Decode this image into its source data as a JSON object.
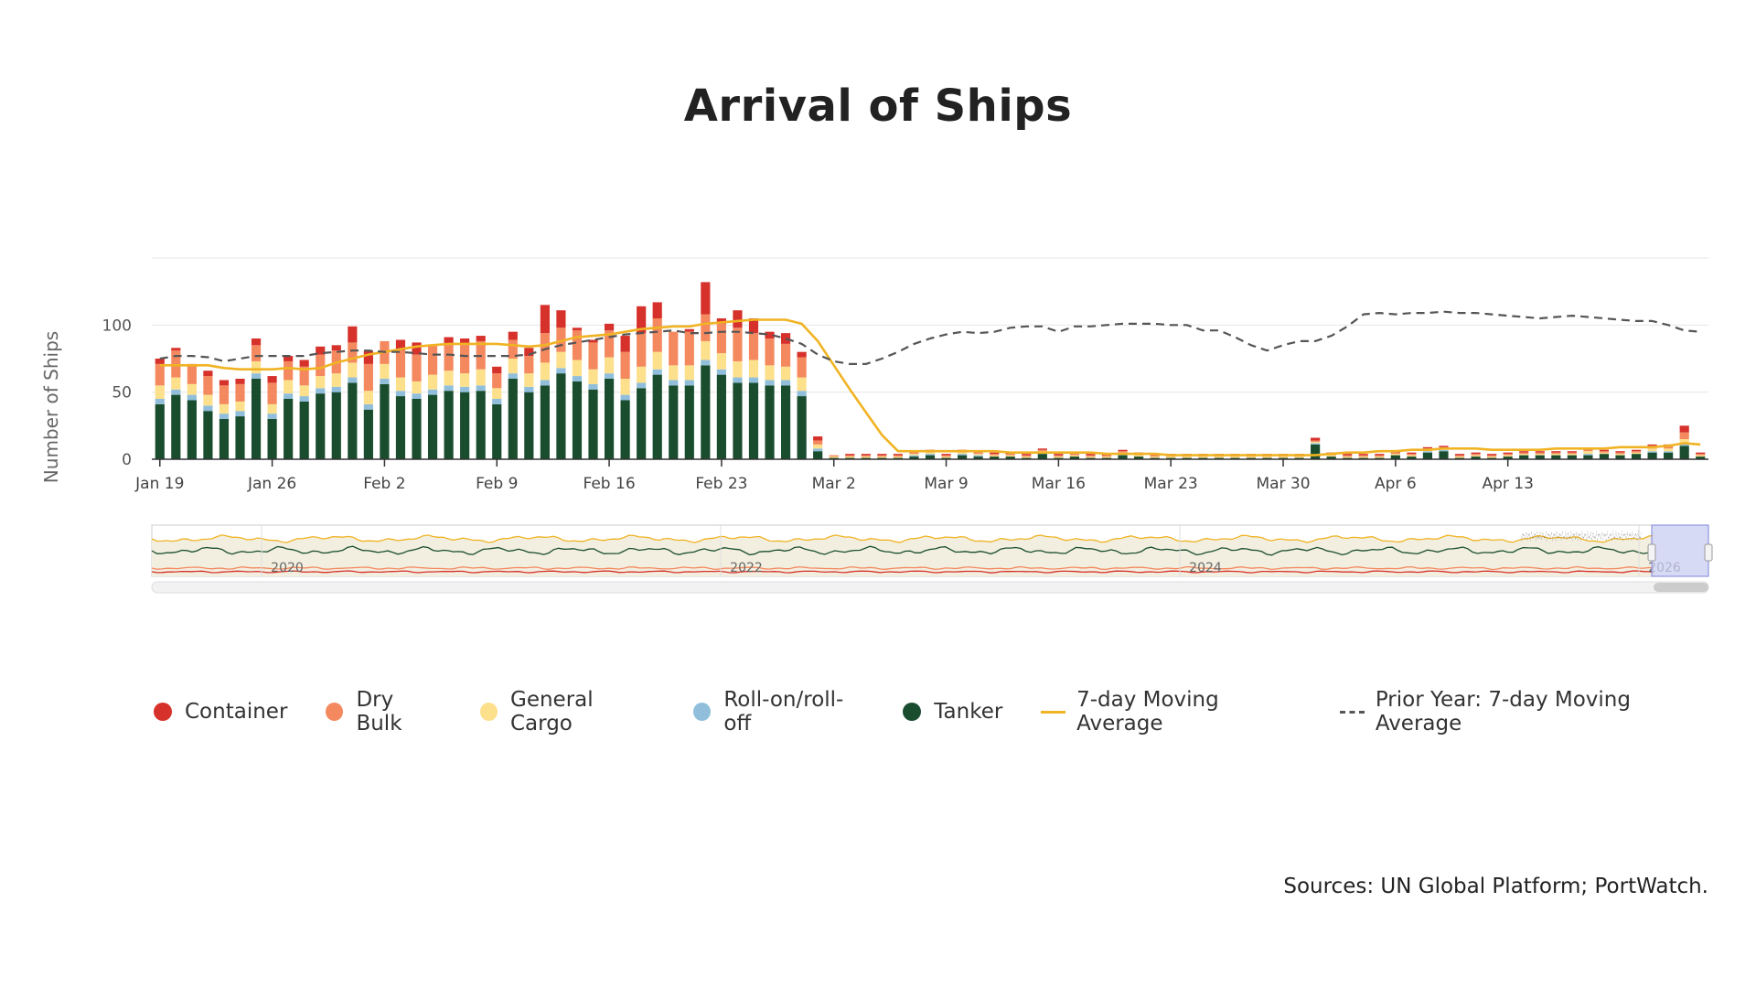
{
  "title": "Arrival of Ships",
  "source": "Sources: UN Global Platform; PortWatch.",
  "colors": {
    "container": "#d6312b",
    "dry_bulk": "#f4895f",
    "general_cargo": "#fde08c",
    "roro": "#91bfdb",
    "tanker": "#1a4d2e",
    "moving_average": "#f0b323",
    "prior_year": "#555555",
    "grid": "#e6e6e6",
    "navigator_fill": "#f2efe0",
    "navigator_window": "#c9cdf2"
  },
  "legend": [
    {
      "label": "Container",
      "key": "container",
      "symbol": "dot"
    },
    {
      "label": "Dry Bulk",
      "key": "dry_bulk",
      "symbol": "dot"
    },
    {
      "label": "General Cargo",
      "key": "general_cargo",
      "symbol": "dot"
    },
    {
      "label": "Roll-on/roll-off",
      "key": "roro",
      "symbol": "dot"
    },
    {
      "label": "Tanker",
      "key": "tanker",
      "symbol": "dot"
    },
    {
      "label": "7-day Moving Average",
      "key": "moving_average",
      "symbol": "line"
    },
    {
      "label": "Prior Year: 7-day Moving Average",
      "key": "prior_year",
      "symbol": "dash"
    }
  ],
  "navigator": {
    "year_labels": [
      "2020",
      "2022",
      "2024",
      "2026"
    ]
  },
  "chart_data": {
    "type": "bar",
    "stacked": true,
    "ylabel": "Number of Ships",
    "xlabel": "",
    "ylim": [
      0,
      150
    ],
    "y_ticks": [
      0,
      50,
      100
    ],
    "grid": true,
    "legend_position": "bottom",
    "x_ticks": [
      "Jan 19",
      "Jan 26",
      "Feb 2",
      "Feb 9",
      "Feb 16",
      "Feb 23",
      "Mar 2",
      "Mar 9",
      "Mar 16",
      "Mar 23",
      "Mar 30",
      "Apr 6",
      "Apr 13"
    ],
    "x_range": [
      "Jan 19",
      "Apr 19"
    ],
    "series": [
      {
        "name": "Tanker",
        "key": "tanker",
        "values": [
          41,
          48,
          44,
          36,
          30,
          32,
          60,
          30,
          45,
          43,
          49,
          50,
          57,
          37,
          56,
          47,
          45,
          48,
          51,
          50,
          51,
          41,
          60,
          50,
          55,
          64,
          58,
          52,
          60,
          44,
          53,
          63,
          55,
          55,
          70,
          63,
          57,
          57,
          55,
          55,
          47,
          6,
          1,
          1,
          1,
          1,
          1,
          2,
          3,
          1,
          3,
          2,
          2,
          2,
          1,
          4,
          1,
          2,
          1,
          1,
          3,
          2,
          1,
          1,
          1,
          1,
          1,
          1,
          1,
          1,
          1,
          1,
          11,
          2,
          1,
          1,
          1,
          3,
          2,
          5,
          6,
          1,
          2,
          1,
          2,
          3,
          3,
          3,
          3,
          3,
          4,
          3,
          4,
          5,
          5,
          10,
          2
        ]
      },
      {
        "name": "Roll-on/roll-off",
        "key": "roro",
        "values": [
          4,
          4,
          4,
          4,
          4,
          4,
          4,
          4,
          4,
          4,
          4,
          4,
          4,
          4,
          4,
          4,
          4,
          4,
          4,
          4,
          4,
          4,
          4,
          4,
          4,
          4,
          4,
          4,
          4,
          4,
          4,
          4,
          4,
          4,
          4,
          4,
          4,
          4,
          4,
          4,
          4,
          2,
          0,
          0,
          0,
          0,
          0,
          1,
          1,
          0,
          1,
          1,
          0,
          0,
          0,
          1,
          0,
          0,
          0,
          0,
          1,
          0,
          0,
          0,
          0,
          0,
          0,
          0,
          0,
          0,
          0,
          0,
          1,
          0,
          0,
          0,
          0,
          0,
          0,
          1,
          1,
          0,
          0,
          0,
          0,
          0,
          0,
          0,
          0,
          1,
          0,
          0,
          0,
          1,
          1,
          2,
          0
        ]
      },
      {
        "name": "General Cargo",
        "key": "general_cargo",
        "values": [
          10,
          9,
          8,
          8,
          7,
          7,
          9,
          7,
          10,
          8,
          9,
          10,
          11,
          10,
          11,
          10,
          9,
          11,
          11,
          10,
          12,
          8,
          11,
          10,
          13,
          12,
          12,
          11,
          12,
          12,
          12,
          13,
          11,
          11,
          14,
          12,
          12,
          13,
          11,
          10,
          10,
          3,
          1,
          1,
          1,
          1,
          1,
          1,
          1,
          1,
          1,
          1,
          1,
          1,
          1,
          1,
          1,
          1,
          1,
          1,
          1,
          1,
          1,
          1,
          1,
          1,
          1,
          1,
          1,
          1,
          1,
          1,
          1,
          1,
          1,
          1,
          1,
          1,
          1,
          1,
          1,
          1,
          1,
          1,
          1,
          1,
          1,
          1,
          1,
          2,
          1,
          1,
          1,
          2,
          2,
          3,
          1
        ]
      },
      {
        "name": "Dry Bulk",
        "key": "dry_bulk",
        "values": [
          16,
          20,
          14,
          14,
          14,
          13,
          12,
          16,
          14,
          14,
          16,
          17,
          15,
          20,
          17,
          20,
          20,
          22,
          20,
          22,
          21,
          11,
          14,
          13,
          22,
          18,
          22,
          20,
          20,
          20,
          25,
          25,
          25,
          25,
          20,
          22,
          25,
          20,
          20,
          17,
          15,
          3,
          1,
          1,
          1,
          1,
          1,
          1,
          1,
          1,
          1,
          1,
          1,
          1,
          1,
          1,
          1,
          1,
          1,
          1,
          1,
          1,
          1,
          1,
          1,
          1,
          1,
          1,
          1,
          1,
          1,
          1,
          1,
          1,
          1,
          1,
          1,
          1,
          1,
          1,
          1,
          1,
          1,
          1,
          1,
          1,
          1,
          1,
          1,
          1,
          1,
          1,
          1,
          2,
          2,
          5,
          1
        ]
      },
      {
        "name": "Container",
        "key": "container",
        "values": [
          4,
          2,
          1,
          4,
          4,
          4,
          5,
          5,
          4,
          5,
          6,
          4,
          12,
          10,
          0,
          8,
          9,
          0,
          5,
          4,
          4,
          5,
          6,
          6,
          21,
          13,
          2,
          2,
          5,
          12,
          20,
          12,
          0,
          2,
          24,
          4,
          13,
          11,
          5,
          8,
          4,
          3,
          0,
          1,
          1,
          1,
          1,
          1,
          1,
          1,
          1,
          1,
          1,
          1,
          1,
          1,
          1,
          1,
          1,
          1,
          1,
          1,
          1,
          1,
          1,
          1,
          1,
          1,
          1,
          1,
          1,
          1,
          2,
          1,
          1,
          1,
          1,
          1,
          1,
          1,
          1,
          1,
          1,
          1,
          1,
          1,
          1,
          1,
          1,
          1,
          1,
          1,
          1,
          1,
          1,
          5,
          1
        ]
      },
      {
        "name": "7-day Moving Average",
        "key": "moving_average",
        "type": "line",
        "values": [
          70,
          70,
          70,
          70,
          68,
          67,
          67,
          67,
          68,
          67,
          68,
          72,
          75,
          78,
          80,
          82,
          84,
          85,
          86,
          86,
          86,
          86,
          85,
          84,
          85,
          88,
          91,
          92,
          93,
          95,
          97,
          98,
          99,
          99,
          101,
          102,
          103,
          104,
          104,
          104,
          101,
          88,
          70,
          52,
          35,
          18,
          6,
          6,
          6,
          6,
          6,
          6,
          6,
          5,
          5,
          5,
          5,
          5,
          5,
          4,
          4,
          4,
          4,
          3,
          3,
          3,
          3,
          3,
          3,
          3,
          3,
          3,
          3,
          4,
          5,
          5,
          6,
          6,
          7,
          7,
          8,
          8,
          8,
          7,
          7,
          7,
          7,
          8,
          8,
          8,
          8,
          9,
          9,
          9,
          10,
          12,
          11
        ]
      },
      {
        "name": "Prior Year: 7-day Moving Average",
        "key": "prior_year",
        "type": "line",
        "values": [
          75,
          77,
          77,
          76,
          73,
          75,
          77,
          77,
          77,
          77,
          79,
          80,
          81,
          81,
          80,
          80,
          79,
          78,
          78,
          77,
          77,
          77,
          77,
          78,
          82,
          85,
          87,
          89,
          91,
          93,
          94,
          95,
          96,
          94,
          94,
          95,
          95,
          94,
          93,
          90,
          86,
          78,
          73,
          71,
          71,
          75,
          80,
          86,
          90,
          93,
          95,
          94,
          95,
          98,
          99,
          99,
          95,
          99,
          99,
          100,
          101,
          101,
          101,
          100,
          100,
          96,
          96,
          91,
          85,
          81,
          85,
          88,
          88,
          92,
          99,
          108,
          109,
          108,
          109,
          109,
          110,
          109,
          109,
          108,
          107,
          106,
          105,
          106,
          107,
          106,
          105,
          104,
          103,
          103,
          100,
          96,
          95
        ]
      }
    ]
  }
}
